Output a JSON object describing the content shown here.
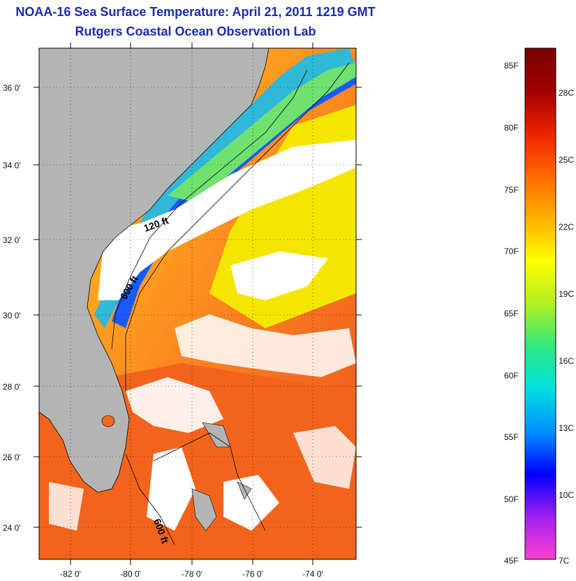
{
  "header": {
    "title": "NOAA-16 Sea Surface Temperature:  April 21, 2011 1219 GMT",
    "subtitle": "Rutgers Coastal Ocean Observation Lab"
  },
  "map": {
    "lat_labels": [
      "36 0'",
      "34 0'",
      "32 0'",
      "30 0'",
      "28 0'",
      "26 0'",
      "24 0'"
    ],
    "lon_labels": [
      "-82 0'",
      "-80 0'",
      "-78 0'",
      "-76 0'",
      "-74 0'"
    ],
    "contour_labels": [
      "120 ft",
      "600 ft",
      "600 ft"
    ],
    "colors": {
      "land": "#b4b4b4",
      "cloud": "#ffffff",
      "warm_water": "#f5641e",
      "gulf_stream": "#f08c28",
      "frame": "#000000"
    }
  },
  "colorbar": {
    "fahrenheit_labels": [
      "85F",
      "80F",
      "75F",
      "70F",
      "65F",
      "60F",
      "55F",
      "50F",
      "45F"
    ],
    "celsius_labels": [
      "28C",
      "25C",
      "22C",
      "19C",
      "16C",
      "13C",
      "10C",
      "7C"
    ],
    "colors": [
      "#ff40d0",
      "#a020f0",
      "#0000ff",
      "#0090ff",
      "#00e0e0",
      "#30e880",
      "#b0f020",
      "#ffff00",
      "#ffb000",
      "#ff6a00",
      "#ee2200",
      "#a00000",
      "#780000"
    ]
  }
}
